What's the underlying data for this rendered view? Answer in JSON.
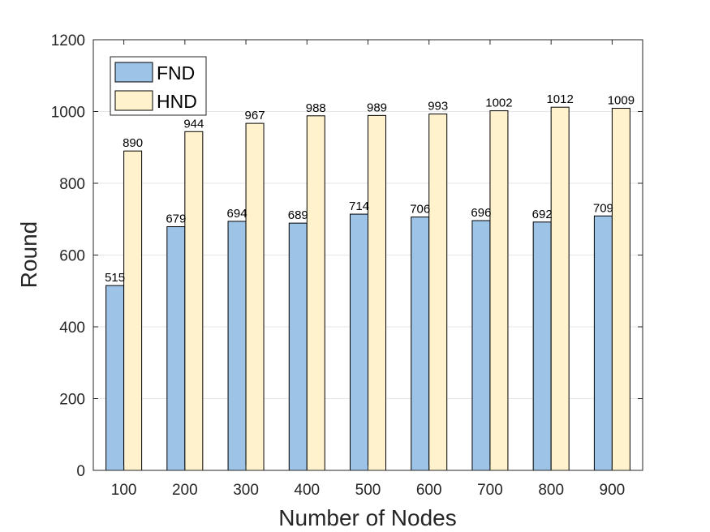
{
  "chart_data": {
    "type": "bar",
    "xlabel": "Number of Nodes",
    "ylabel": "Round",
    "categories": [
      "100",
      "200",
      "300",
      "400",
      "500",
      "600",
      "700",
      "800",
      "900"
    ],
    "series": [
      {
        "name": "FND",
        "color": "#9DC3E6",
        "values": [
          515,
          679,
          694,
          689,
          714,
          706,
          696,
          692,
          709
        ]
      },
      {
        "name": "HND",
        "color": "#FFF2CC",
        "values": [
          890,
          944,
          967,
          988,
          989,
          993,
          1002,
          1012,
          1009
        ]
      }
    ],
    "ylim": [
      0,
      1200
    ],
    "yticks": [
      "0",
      "200",
      "400",
      "600",
      "800",
      "1000",
      "1200"
    ],
    "grid": true,
    "legend": "top-left",
    "data_labels": true
  }
}
